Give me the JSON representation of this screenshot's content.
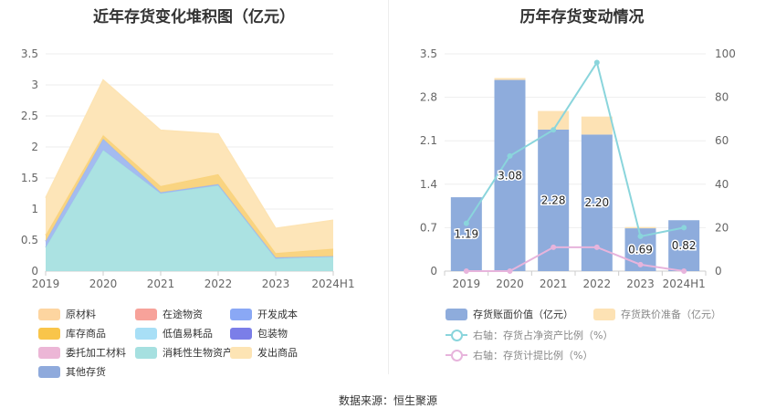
{
  "left_title": "近年存货变化堆积图（亿元）",
  "right_title": "历年存货变动情况",
  "source": "数据来源：恒生聚源",
  "chart_data": [
    {
      "type": "area",
      "title": "近年存货变化堆积图（亿元）",
      "categories": [
        "2019",
        "2020",
        "2021",
        "2022",
        "2023",
        "2024H1"
      ],
      "yticks": [
        "0",
        "0.5",
        "1",
        "1.5",
        "2",
        "2.5",
        "3",
        "3.5"
      ],
      "ylim": [
        0,
        3.5
      ],
      "grid": true,
      "legend_position": "bottom",
      "series": [
        {
          "name": "原材料",
          "color": "#fdd5a0",
          "values": [
            0.0,
            0.0,
            0.0,
            0.0,
            0.0,
            0.0
          ]
        },
        {
          "name": "在途物资",
          "color": "#f7a29a",
          "values": [
            0.0,
            0.0,
            0.0,
            0.0,
            0.0,
            0.0
          ]
        },
        {
          "name": "开发成本",
          "color": "#8aa8f5",
          "values": [
            0.0,
            0.0,
            0.0,
            0.0,
            0.0,
            0.0
          ]
        },
        {
          "name": "库存商品",
          "color": "#f9c54a",
          "values": [
            0.0,
            0.0,
            0.0,
            0.0,
            0.0,
            0.0
          ]
        },
        {
          "name": "低值易耗品",
          "color": "#a8dff6",
          "values": [
            0.0,
            0.0,
            0.0,
            0.0,
            0.0,
            0.0
          ]
        },
        {
          "name": "包装物",
          "color": "#7b7ee8",
          "values": [
            0.0,
            0.0,
            0.0,
            0.0,
            0.0,
            0.0
          ]
        },
        {
          "name": "委托加工材料",
          "color": "#ecb6d6",
          "values": [
            0.0,
            0.0,
            0.0,
            0.0,
            0.0,
            0.0
          ]
        },
        {
          "name": "消耗性生物资产",
          "color": "#a6e0e0",
          "values": [
            0.38,
            1.95,
            1.25,
            1.38,
            0.2,
            0.24
          ]
        },
        {
          "name": "其他存货-开发",
          "color": "#9fb7ef",
          "values": [
            0.1,
            0.18,
            0.02,
            0.02,
            0.02,
            0.0
          ],
          "legend": false
        },
        {
          "name": "库存商品-增量",
          "color": "#f9d27a",
          "values": [
            0.1,
            0.06,
            0.1,
            0.16,
            0.07,
            0.12
          ],
          "legend": false
        },
        {
          "name": "发出商品",
          "color": "#fde4b4",
          "values": [
            0.6,
            0.89,
            0.9,
            0.65,
            0.4,
            0.46
          ]
        },
        {
          "name": "其他存货",
          "color": "#8faadc",
          "values": [
            0.0,
            0.0,
            0.0,
            0.0,
            0.0,
            0.0
          ]
        }
      ]
    },
    {
      "type": "bar",
      "title": "历年存货变动情况",
      "categories": [
        "2019",
        "2020",
        "2021",
        "2022",
        "2023",
        "2024H1"
      ],
      "yticks_left": [
        "0",
        "0.7",
        "1.4",
        "2.1",
        "2.8",
        "3.5"
      ],
      "ylim_left": [
        0,
        3.5
      ],
      "yticks_right": [
        "0",
        "20",
        "40",
        "60",
        "80",
        "100"
      ],
      "ylim_right": [
        0,
        100
      ],
      "grid": true,
      "legend_position": "bottom",
      "series": [
        {
          "name": "存货账面价值（亿元）",
          "kind": "bar",
          "axis": "left",
          "color": "#8eacdc",
          "values": [
            1.19,
            3.08,
            2.28,
            2.2,
            0.69,
            0.82
          ],
          "labels": [
            "1.19",
            "3.08",
            "2.28",
            "2.20",
            "0.69",
            "0.82"
          ]
        },
        {
          "name": "存货跌价准备（亿元）",
          "kind": "bar",
          "axis": "left",
          "color": "#fde2b4",
          "values": [
            0.0,
            0.03,
            0.3,
            0.29,
            0.02,
            0.0
          ]
        },
        {
          "name": "右轴：存货占净资产比例（%）",
          "kind": "line",
          "axis": "right",
          "color": "#8ad5dc",
          "values": [
            22,
            53,
            65,
            96,
            16,
            20
          ]
        },
        {
          "name": "右轴：存货计提比例（%）",
          "kind": "line",
          "axis": "right",
          "color": "#e7b4dc",
          "values": [
            0,
            0,
            11,
            11,
            3,
            0
          ]
        }
      ]
    }
  ]
}
